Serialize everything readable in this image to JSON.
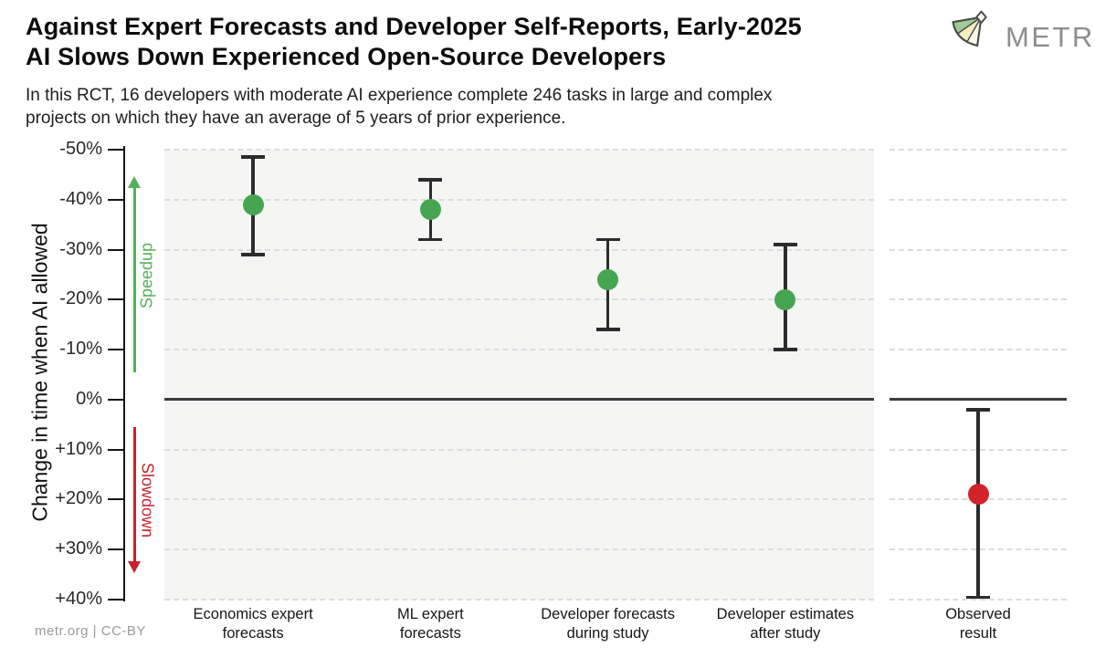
{
  "header": {
    "title_line1": "Against Expert Forecasts and Developer Self-Reports, Early-2025",
    "title_line2": "AI Slows Down Experienced Open-Source Developers",
    "subtitle_line1": "In this RCT, 16 developers with moderate AI experience complete 246 tasks in large and complex",
    "subtitle_line2": "projects on which they have an average of 5 years of prior experience.",
    "logo_text": "METR"
  },
  "footer": {
    "credit": "metr.org  |  CC-BY"
  },
  "chart_data": {
    "type": "scatter",
    "title": "Against Expert Forecasts and Developer Self-Reports, Early-2025 AI Slows Down Experienced Open-Source Developers",
    "subtitle": "In this RCT, 16 developers with moderate AI experience complete 246 tasks in large and complex projects on which they have an average of 5 years of prior experience.",
    "ylabel": "Change in time when AI allowed",
    "y_unit": "%",
    "ylim": [
      -50,
      40
    ],
    "y_axis_inverted": true,
    "y_ticks": [
      -50,
      -40,
      -30,
      -20,
      -10,
      0,
      10,
      20,
      30,
      40
    ],
    "y_tick_labels": [
      "-50%",
      "-40%",
      "-30%",
      "-20%",
      "-10%",
      "0%",
      "+10%",
      "+20%",
      "+30%",
      "+40%"
    ],
    "grid": "dashed horizontal gridlines every 10%, solid dark line at 0%",
    "legend": "none",
    "annotations": {
      "speedup": {
        "label": "Speedup",
        "direction": "up",
        "color": "#54b05a"
      },
      "slowdown": {
        "label": "Slowdown",
        "direction": "down",
        "color": "#c4242c"
      }
    },
    "errorbar_color": "#2c2c2c",
    "series": [
      {
        "category": [
          "Economics expert",
          "forecasts"
        ],
        "value": -39,
        "ci": [
          -48.5,
          -29
        ],
        "color": "#46a551",
        "panel": 0
      },
      {
        "category": [
          "ML expert",
          "forecasts"
        ],
        "value": -38,
        "ci": [
          -44,
          -32
        ],
        "color": "#46a551",
        "panel": 0
      },
      {
        "category": [
          "Developer forecasts",
          "during study"
        ],
        "value": -24,
        "ci": [
          -32,
          -14
        ],
        "color": "#46a551",
        "panel": 0
      },
      {
        "category": [
          "Developer estimates",
          "after study"
        ],
        "value": -20,
        "ci": [
          -31,
          -10
        ],
        "color": "#46a551",
        "panel": 0
      },
      {
        "category": [
          "Observed",
          "result"
        ],
        "value": 19,
        "ci": [
          2,
          39.5
        ],
        "color": "#d2222a",
        "panel": 1
      }
    ]
  }
}
